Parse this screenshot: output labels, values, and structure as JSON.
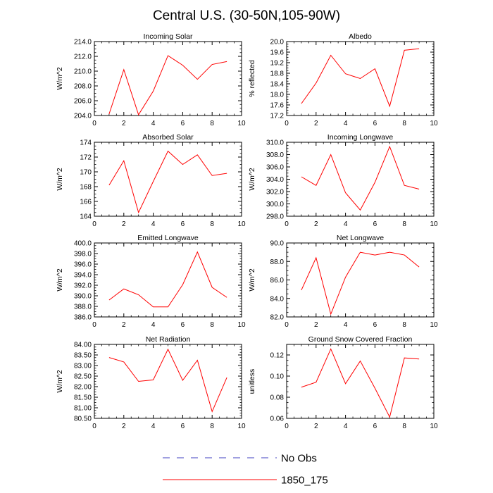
{
  "figure": {
    "title": "Central U.S. (30-50N,105-90W)"
  },
  "legend": {
    "entries": [
      {
        "label": "No Obs",
        "color": "#4040c0",
        "style": "dashed"
      },
      {
        "label": "1850_175",
        "color": "#ff0000",
        "style": "solid"
      }
    ]
  },
  "chart_data": [
    {
      "type": "line",
      "title": "Incoming Solar",
      "ylabel": "W/m^2",
      "xlim": [
        0,
        10
      ],
      "xticks": [
        0,
        2,
        4,
        6,
        8,
        10
      ],
      "ylim": [
        204.0,
        214.0
      ],
      "yticks": [
        204.0,
        206.0,
        208.0,
        210.0,
        212.0,
        214.0
      ],
      "ydecimals": 1,
      "x": [
        1,
        2,
        3,
        4,
        5,
        6,
        7,
        8,
        9
      ],
      "series": [
        {
          "name": "1850_175",
          "color": "#ff0000",
          "values": [
            204.2,
            210.2,
            204.1,
            207.3,
            212.1,
            210.8,
            208.9,
            210.9,
            211.3
          ]
        }
      ]
    },
    {
      "type": "line",
      "title": "Albedo",
      "ylabel": "% reflected",
      "xlim": [
        0,
        10
      ],
      "xticks": [
        0,
        2,
        4,
        6,
        8,
        10
      ],
      "ylim": [
        17.2,
        20.0
      ],
      "yticks": [
        17.2,
        17.6,
        18.0,
        18.4,
        18.8,
        19.2,
        19.6,
        20.0
      ],
      "ydecimals": 1,
      "x": [
        1,
        2,
        3,
        4,
        5,
        6,
        7,
        8,
        9
      ],
      "series": [
        {
          "name": "1850_175",
          "color": "#ff0000",
          "values": [
            17.65,
            18.43,
            19.48,
            18.78,
            18.6,
            18.97,
            17.55,
            19.67,
            19.73
          ]
        }
      ]
    },
    {
      "type": "line",
      "title": "Absorbed Solar",
      "ylabel": "W/m^2",
      "xlim": [
        0,
        10
      ],
      "xticks": [
        0,
        2,
        4,
        6,
        8,
        10
      ],
      "ylim": [
        164,
        174
      ],
      "yticks": [
        164,
        166,
        168,
        170,
        172,
        174
      ],
      "ydecimals": 0,
      "x": [
        1,
        2,
        3,
        4,
        5,
        6,
        7,
        8,
        9
      ],
      "series": [
        {
          "name": "1850_175",
          "color": "#ff0000",
          "values": [
            168.2,
            171.5,
            164.5,
            168.7,
            172.8,
            171.0,
            172.3,
            169.5,
            169.8
          ]
        }
      ]
    },
    {
      "type": "line",
      "title": "Incoming Longwave",
      "ylabel": "W/m^2",
      "xlim": [
        0,
        10
      ],
      "xticks": [
        0,
        2,
        4,
        6,
        8,
        10
      ],
      "ylim": [
        298.0,
        310.0
      ],
      "yticks": [
        298.0,
        300.0,
        302.0,
        304.0,
        306.0,
        308.0,
        310.0
      ],
      "ydecimals": 1,
      "x": [
        1,
        2,
        3,
        4,
        5,
        6,
        7,
        8,
        9
      ],
      "series": [
        {
          "name": "1850_175",
          "color": "#ff0000",
          "values": [
            304.4,
            303.0,
            308.0,
            301.8,
            299.0,
            303.5,
            309.3,
            303.0,
            302.4
          ]
        }
      ]
    },
    {
      "type": "line",
      "title": "Emitted Longwave",
      "ylabel": "W/m^2",
      "xlim": [
        0,
        10
      ],
      "xticks": [
        0,
        2,
        4,
        6,
        8,
        10
      ],
      "ylim": [
        386.0,
        400.0
      ],
      "yticks": [
        386.0,
        388.0,
        390.0,
        392.0,
        394.0,
        396.0,
        398.0,
        400.0
      ],
      "ydecimals": 1,
      "x": [
        1,
        2,
        3,
        4,
        5,
        6,
        7,
        8,
        9
      ],
      "series": [
        {
          "name": "1850_175",
          "color": "#ff0000",
          "values": [
            389.2,
            391.3,
            390.2,
            387.9,
            387.9,
            392.1,
            398.3,
            391.6,
            389.7
          ]
        }
      ]
    },
    {
      "type": "line",
      "title": "Net Longwave",
      "ylabel": "W/m^2",
      "xlim": [
        0,
        10
      ],
      "xticks": [
        0,
        2,
        4,
        6,
        8,
        10
      ],
      "ylim": [
        82.0,
        90.0
      ],
      "yticks": [
        82.0,
        84.0,
        86.0,
        88.0,
        90.0
      ],
      "ydecimals": 1,
      "x": [
        1,
        2,
        3,
        4,
        5,
        6,
        7,
        8,
        9
      ],
      "series": [
        {
          "name": "1850_175",
          "color": "#ff0000",
          "values": [
            84.9,
            88.4,
            82.3,
            86.3,
            89.0,
            88.7,
            89.0,
            88.7,
            87.4
          ]
        }
      ]
    },
    {
      "type": "line",
      "title": "Net Radiation",
      "ylabel": "W/m^2",
      "xlim": [
        0,
        10
      ],
      "xticks": [
        0,
        2,
        4,
        6,
        8,
        10
      ],
      "ylim": [
        80.5,
        84.0
      ],
      "yticks": [
        80.5,
        81.0,
        81.5,
        82.0,
        82.5,
        83.0,
        83.5,
        84.0
      ],
      "ydecimals": 2,
      "x": [
        1,
        2,
        3,
        4,
        5,
        6,
        7,
        8,
        9
      ],
      "series": [
        {
          "name": "1850_175",
          "color": "#ff0000",
          "values": [
            83.38,
            83.17,
            82.25,
            82.32,
            83.77,
            82.3,
            83.25,
            80.82,
            82.43
          ]
        }
      ]
    },
    {
      "type": "line",
      "title": "Ground Snow Covered Fraction",
      "ylabel": "unitless",
      "xlim": [
        0,
        10
      ],
      "xticks": [
        0,
        2,
        4,
        6,
        8,
        10
      ],
      "ylim": [
        0.06,
        0.13
      ],
      "yticks": [
        0.06,
        0.08,
        0.1,
        0.12
      ],
      "ydecimals": 2,
      "x": [
        1,
        2,
        3,
        4,
        5,
        6,
        7,
        8,
        9
      ],
      "series": [
        {
          "name": "1850_175",
          "color": "#ff0000",
          "values": [
            0.0895,
            0.0942,
            0.1257,
            0.0928,
            0.1143,
            0.0885,
            0.0612,
            0.1172,
            0.1162
          ]
        }
      ]
    }
  ]
}
